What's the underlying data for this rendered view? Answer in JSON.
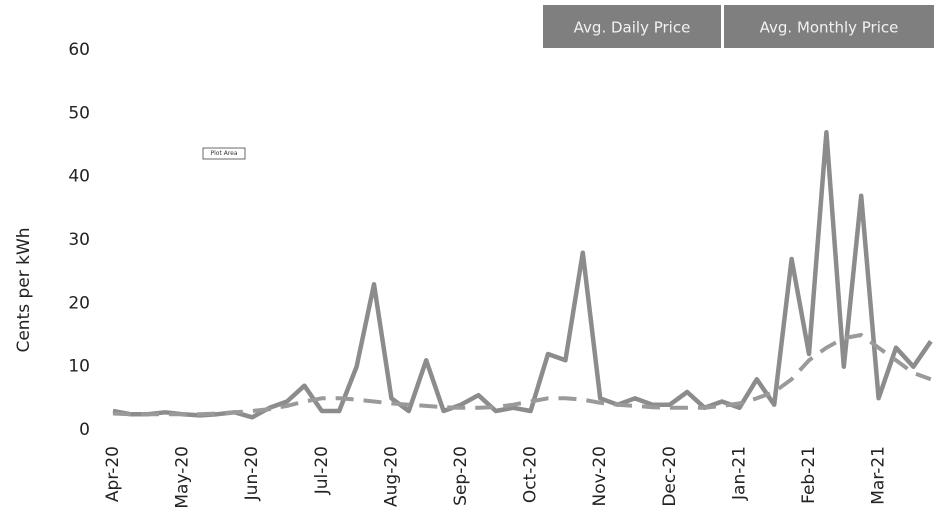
{
  "chart_data": {
    "type": "line",
    "y_label": "Cents per kWh",
    "annotation": "Plot Area",
    "categories": [
      "Apr-20",
      null,
      null,
      null,
      "May-20",
      null,
      null,
      null,
      "Jun-20",
      null,
      null,
      null,
      "Jul-20",
      null,
      null,
      null,
      "Aug-20",
      null,
      null,
      null,
      "Sep-20",
      null,
      null,
      null,
      "Oct-20",
      null,
      null,
      null,
      "Nov-20",
      null,
      null,
      null,
      "Dec-20",
      null,
      null,
      null,
      "Jan-21",
      null,
      null,
      null,
      "Feb-21",
      null,
      null,
      null,
      "Mar-21",
      null,
      null,
      null
    ],
    "series": [
      {
        "name": "Avg. Daily Price",
        "color": "#8c8c8c",
        "dash": false,
        "values": [
          3,
          2.5,
          2.5,
          2.8,
          2.5,
          2.3,
          2.5,
          2.8,
          2,
          3.5,
          4.5,
          7,
          3,
          3,
          10,
          23,
          5,
          3,
          11,
          3,
          4,
          5.5,
          3,
          3.5,
          3,
          12,
          11,
          28,
          5,
          4,
          5,
          4,
          4,
          6,
          3.5,
          4.5,
          3.5,
          8,
          4,
          27,
          12,
          47,
          10,
          37,
          5,
          13,
          10,
          14
        ]
      },
      {
        "name": "Avg. Monthly Price",
        "color": "#9a9a9a",
        "dash": true,
        "values": [
          2.6,
          2.5,
          2.5,
          2.5,
          2.5,
          2.5,
          2.6,
          2.8,
          3,
          3.3,
          3.8,
          4.5,
          5,
          5,
          4.8,
          4.5,
          4.2,
          4,
          3.8,
          3.6,
          3.5,
          3.5,
          3.6,
          4,
          4.5,
          5,
          5,
          4.8,
          4.3,
          4,
          3.8,
          3.6,
          3.5,
          3.5,
          3.5,
          3.8,
          4.2,
          5,
          6,
          8,
          11,
          13,
          14.5,
          15,
          13,
          11,
          9,
          8
        ]
      }
    ],
    "ylim": [
      0,
      60
    ],
    "yticks": [
      0,
      10,
      20,
      30,
      40,
      50,
      60
    ],
    "grid": false,
    "legend": "top-right"
  }
}
